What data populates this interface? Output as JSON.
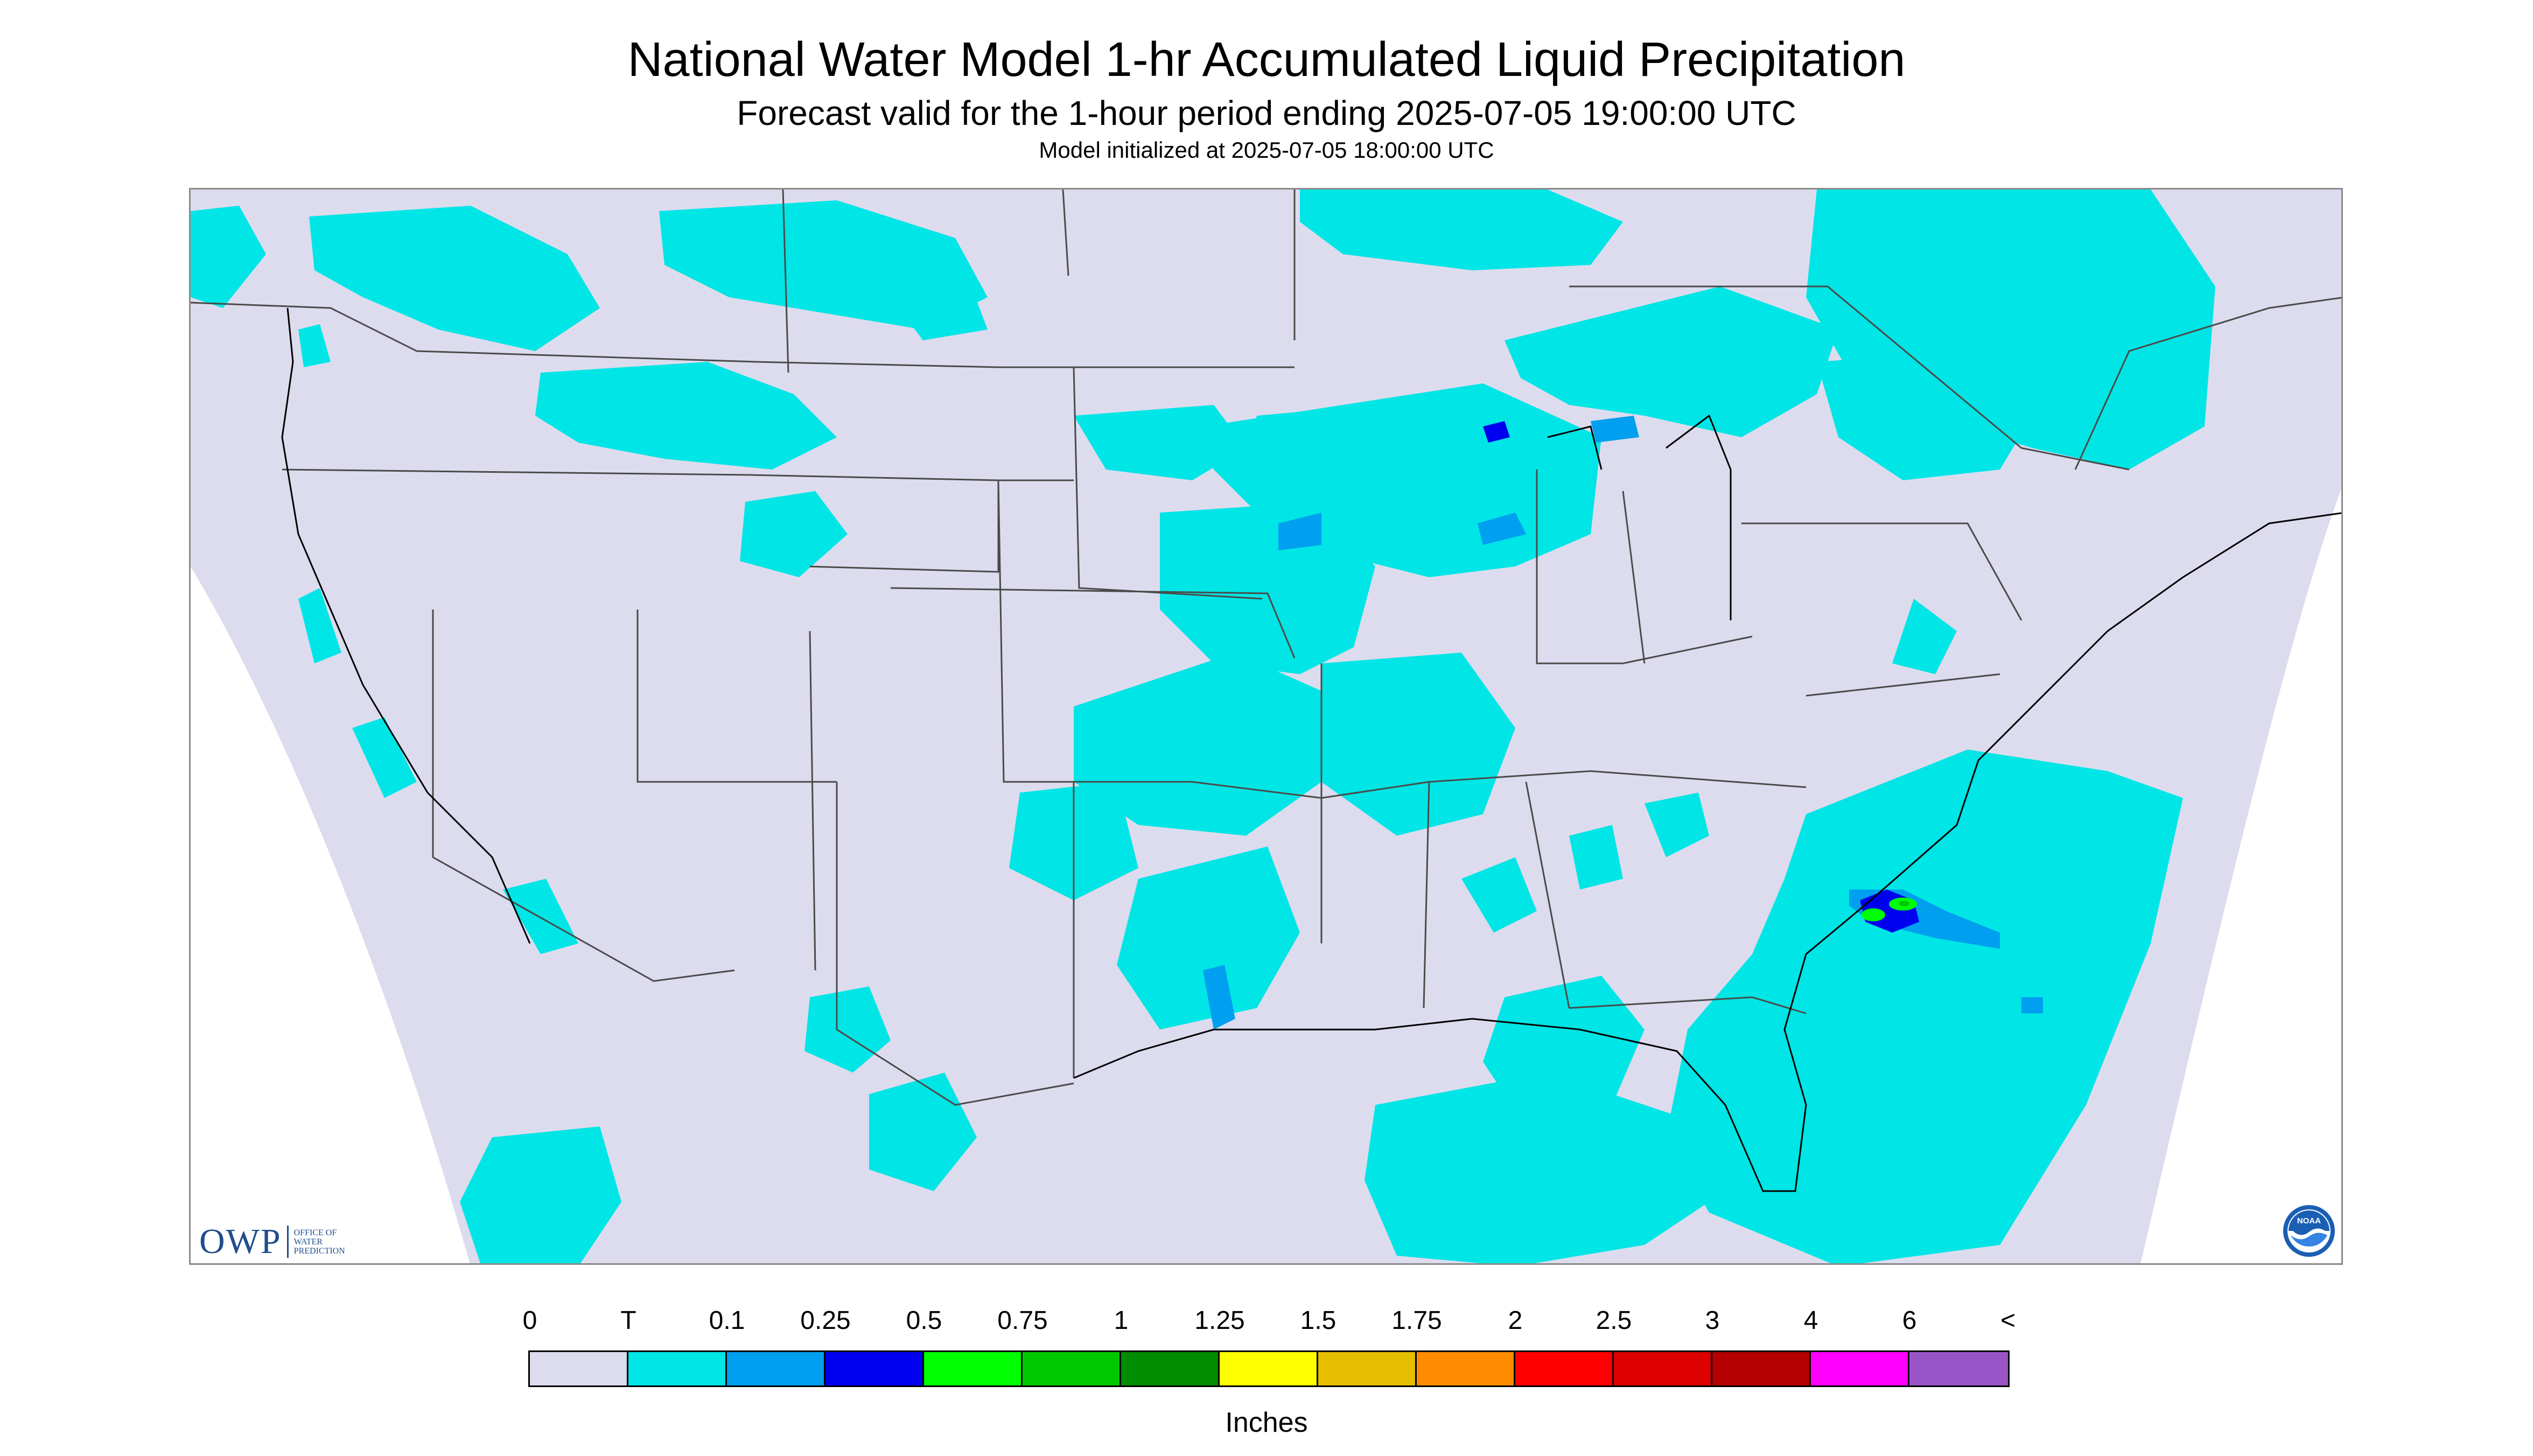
{
  "header": {
    "title": "National Water Model 1-hr Accumulated Liquid Precipitation",
    "subtitle": "Forecast valid for the 1-hour period ending 2025-07-05 19:00:00 UTC",
    "initialized": "Model initialized at 2025-07-05 18:00:00 UTC"
  },
  "map": {
    "projection_background": "#dcdcee",
    "outside_color": "#ffffff",
    "boundary_color": "#4a4a4a",
    "precip_levels": {
      "trace": "#00e5e5",
      "p01": "#009fef",
      "p025": "#0000f0",
      "p05": "#00ff00",
      "p075": "#00c800"
    },
    "featured_region_icon": "precip-cell-icon"
  },
  "logos": {
    "owp_mark": "OWP",
    "owp_line1": "Office of",
    "owp_line2": "Water",
    "owp_line3": "Prediction",
    "noaa_text": "NOAA"
  },
  "legend": {
    "labels": [
      "0",
      "T",
      "0.1",
      "0.25",
      "0.5",
      "0.75",
      "1",
      "1.25",
      "1.5",
      "1.75",
      "2",
      "2.5",
      "3",
      "4",
      "6",
      "<"
    ],
    "colors": [
      "#dcdcee",
      "#00e5e5",
      "#009fef",
      "#0000f0",
      "#00ff00",
      "#00c800",
      "#008c00",
      "#ffff00",
      "#e5be00",
      "#ff8c00",
      "#ff0000",
      "#dc0000",
      "#b40000",
      "#ff00ff",
      "#9955c8"
    ],
    "units": "Inches"
  }
}
